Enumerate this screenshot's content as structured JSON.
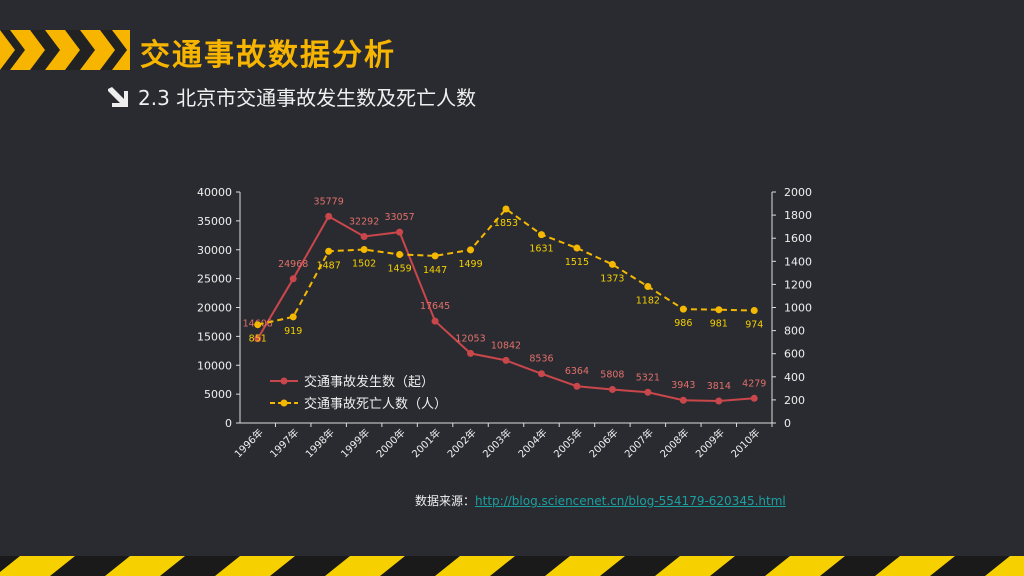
{
  "header": {
    "title": "交通事故数据分析",
    "subtitle": "2.3  北京市交通事故发生数及死亡人数"
  },
  "source": {
    "label": "数据来源：",
    "link": "http://blog.sciencenet.cn/blog-554179-620345.html"
  },
  "chart_data": {
    "type": "line",
    "categories": [
      "1996年",
      "1997年",
      "1998年",
      "1999年",
      "2000年",
      "2001年",
      "2002年",
      "2003年",
      "2004年",
      "2005年",
      "2006年",
      "2007年",
      "2008年",
      "2009年",
      "2010年"
    ],
    "series": [
      {
        "name": "交通事故发生数（起）",
        "axis": "left",
        "color": "#c9474b",
        "dash": false,
        "values": [
          14608,
          24968,
          35779,
          32292,
          33057,
          17645,
          12053,
          10842,
          8536,
          6364,
          5808,
          5321,
          3943,
          3814,
          4279
        ]
      },
      {
        "name": "交通事故死亡人数（人）",
        "axis": "right",
        "color": "#f5b800",
        "dash": true,
        "values": [
          851,
          919,
          1487,
          1502,
          1459,
          1447,
          1499,
          1853,
          1631,
          1515,
          1373,
          1182,
          986,
          981,
          974
        ]
      }
    ],
    "y_left": {
      "min": 0,
      "max": 40000,
      "step": 5000,
      "ticks": [
        "0",
        "5000",
        "10000",
        "15000",
        "20000",
        "25000",
        "30000",
        "35000",
        "40000"
      ]
    },
    "y_right": {
      "min": 0,
      "max": 2000,
      "step": 200,
      "ticks": [
        "0",
        "200",
        "400",
        "600",
        "800",
        "1000",
        "1200",
        "1400",
        "1600",
        "1800",
        "2000"
      ]
    },
    "grid": false,
    "legend": "bottom-left inside"
  }
}
